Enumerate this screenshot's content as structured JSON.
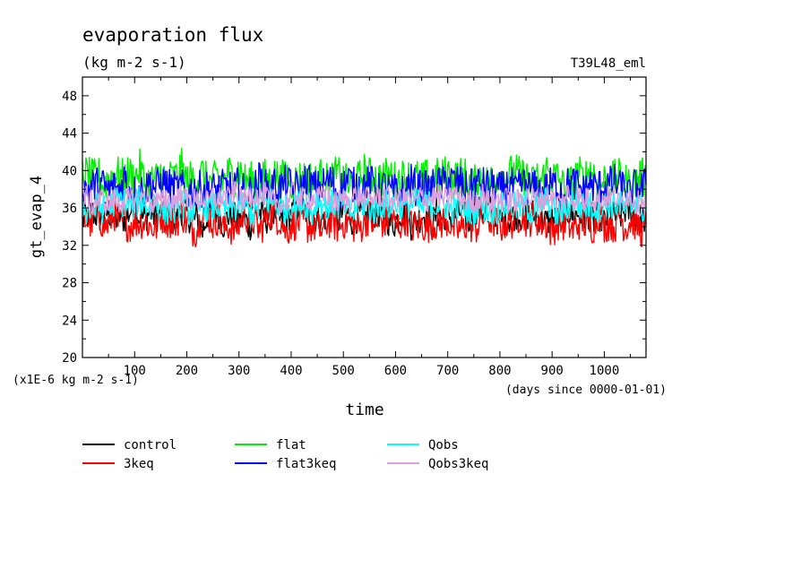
{
  "chart_data": {
    "type": "line",
    "title": "evaporation flux",
    "subtitle": "(kg m-2 s-1)",
    "experiment": "T39L48_eml",
    "xlabel": "time",
    "ylabel": "gt_evap_4",
    "x_units": "(days since 0000-01-01)",
    "y_scale_note": "(x1E-6 kg m-2 s-1)",
    "xlim": [
      0,
      1080
    ],
    "ylim": [
      20,
      50
    ],
    "xticks": [
      100,
      200,
      300,
      400,
      500,
      600,
      700,
      800,
      900,
      1000
    ],
    "xtick_labels": [
      "100",
      "200",
      "300",
      "400",
      "500",
      "600",
      "700",
      "800",
      "900",
      "1000"
    ],
    "yticks": [
      20,
      24,
      28,
      32,
      36,
      40,
      44,
      48
    ],
    "ytick_labels": [
      "20",
      "24",
      "28",
      "32",
      "36",
      "40",
      "44",
      "48"
    ],
    "grid": false,
    "legend_position": "bottom",
    "series": [
      {
        "name": "control",
        "color": "#000000",
        "values": [
          34.6,
          35.3,
          35.5,
          35.0,
          34.9,
          35.7,
          34.4,
          35.3,
          34.8,
          35.5,
          36.4,
          34.9,
          35.0,
          35.6,
          35.1,
          35.3,
          35.3,
          34.7,
          34.5,
          35.8,
          35.4,
          34.6,
          35.0,
          33.5,
          35.3,
          35.8,
          35.7,
          34.2,
          35.2,
          35.0,
          34.5,
          35.0,
          34.0,
          35.0,
          35.5,
          34.7,
          35.2,
          35.6,
          34.6,
          35.1,
          35.3,
          36.1,
          36.0,
          35.5,
          34.8,
          35.1,
          34.8,
          35.3,
          35.3,
          34.5,
          35.7,
          35.3,
          34.4,
          35.5,
          34.6,
          35.8,
          35.2,
          35.6,
          35.2,
          34.4,
          34.4,
          35.5,
          35.3,
          34.2,
          34.6,
          35.2,
          35.3,
          34.1,
          35.6,
          34.9,
          35.6,
          34.6,
          35.5,
          35.7,
          34.2,
          36.1,
          35.8,
          35.6,
          35.9,
          34.9,
          34.7,
          34.7,
          34.8,
          35.4,
          35.1,
          35.1,
          35.5,
          35.1,
          35.0,
          34.4,
          34.9,
          34.5,
          35.5,
          35.7,
          35.1,
          35.4,
          35.0,
          35.4,
          34.6,
          35.3,
          34.4,
          35.4,
          35.0,
          35.1,
          35.8,
          35.6,
          35.0,
          34.9,
          34.8
        ]
      },
      {
        "name": "3keq",
        "color": "#ff0000",
        "values": [
          35.2,
          34.5,
          34.4,
          35.7,
          34.1,
          34.2,
          35.6,
          34.1,
          34.6,
          34.1,
          34.6,
          34.5,
          34.6,
          34.0,
          33.8,
          35.2,
          34.9,
          34.4,
          34.6,
          35.5,
          34.4,
          33.7,
          33.7,
          35.8,
          35.4,
          34.3,
          35.0,
          33.8,
          34.1,
          33.6,
          34.3,
          35.5,
          34.8,
          34.6,
          33.5,
          34.8,
          35.4,
          35.1,
          34.7,
          33.4,
          34.3,
          34.4,
          34.7,
          34.0,
          34.1,
          33.9,
          33.4,
          34.6,
          34.5,
          33.9,
          34.5,
          34.6,
          34.1,
          33.6,
          34.6,
          35.1,
          33.8,
          34.9,
          34.2,
          35.6,
          34.0,
          34.3,
          35.1,
          34.1,
          33.9,
          34.3,
          33.9,
          34.5,
          34.3,
          34.5,
          34.7,
          33.9,
          33.6,
          33.8,
          34.7,
          33.5,
          34.4,
          35.2,
          34.7,
          34.6,
          33.9,
          34.4,
          34.6,
          34.4,
          35.5,
          34.8,
          34.8,
          34.9,
          34.4,
          34.3,
          33.4,
          34.5,
          34.2,
          34.4,
          33.5,
          34.4,
          34.5,
          33.8,
          34.1,
          35.6,
          34.1,
          34.4,
          34.0,
          35.2,
          33.9,
          34.6,
          34.4,
          33.5,
          34.2
        ]
      },
      {
        "name": "flat",
        "color": "#00ee00",
        "values": [
          39.6,
          39.5,
          39.1,
          39.6,
          38.4,
          39.2,
          39.6,
          39.5,
          39.1,
          39.7,
          39.0,
          40.2,
          38.6,
          38.9,
          38.9,
          39.8,
          39.1,
          39.2,
          39.3,
          40.3,
          38.8,
          39.2,
          39.1,
          39.7,
          38.6,
          38.8,
          39.4,
          38.8,
          39.8,
          39.0,
          40.3,
          38.9,
          39.0,
          38.7,
          38.4,
          39.3,
          38.7,
          39.6,
          38.8,
          39.8,
          38.7,
          38.9,
          39.2,
          39.1,
          39.0,
          38.6,
          39.7,
          38.6,
          39.2,
          39.6,
          38.9,
          38.4,
          38.7,
          39.0,
          39.9,
          39.4,
          39.3,
          39.2,
          39.3,
          39.5,
          38.9,
          39.2,
          39.4,
          39.1,
          39.2,
          38.9,
          39.2,
          39.1,
          39.3,
          39.3,
          39.9,
          39.0,
          39.3,
          39.6,
          38.9,
          38.4,
          39.5,
          38.6,
          38.7,
          39.3,
          39.8,
          39.3,
          39.6,
          39.9,
          39.3,
          39.4,
          38.3,
          39.3,
          38.8,
          40.1,
          39.2,
          39.3,
          38.3,
          38.6,
          38.6,
          39.8,
          38.8,
          40.0,
          39.8,
          38.2,
          39.0,
          38.6,
          39.2,
          39.2,
          38.8,
          38.2,
          38.9,
          39.5,
          38.9
        ]
      },
      {
        "name": "flat3keq",
        "color": "#0000ff",
        "values": [
          38.5,
          37.9,
          38.5,
          38.4,
          38.4,
          37.8,
          38.3,
          37.9,
          39.3,
          38.1,
          37.7,
          38.0,
          37.9,
          38.8,
          38.2,
          38.7,
          38.6,
          38.1,
          38.0,
          38.2,
          37.6,
          38.0,
          38.1,
          38.0,
          38.1,
          37.9,
          37.9,
          38.2,
          38.2,
          37.8,
          38.6,
          37.6,
          37.6,
          38.0,
          39.2,
          38.2,
          38.0,
          38.6,
          38.1,
          38.7,
          38.3,
          38.1,
          38.0,
          39.3,
          38.4,
          38.0,
          38.4,
          38.9,
          38.7,
          37.3,
          38.5,
          39.1,
          38.4,
          38.5,
          38.4,
          38.5,
          38.7,
          37.6,
          38.5,
          37.7,
          37.7,
          37.5,
          38.0,
          38.8,
          38.1,
          38.2,
          38.0,
          38.2,
          38.6,
          38.4,
          39.1,
          38.8,
          38.8,
          38.2,
          37.8,
          38.6,
          38.6,
          38.4,
          38.3,
          38.2,
          37.9,
          38.1,
          38.7,
          37.6,
          38.5,
          38.6,
          38.0,
          38.1,
          37.8,
          38.0,
          38.6,
          38.3,
          38.0,
          38.4,
          38.6,
          38.4,
          37.7,
          38.6,
          38.2,
          38.3,
          38.3,
          38.5,
          38.8,
          38.1,
          38.3,
          37.1,
          38.4,
          38.0,
          38.5
        ]
      },
      {
        "name": "Qobs",
        "color": "#00ffff",
        "values": [
          36.4,
          35.5,
          35.8,
          36.1,
          35.9,
          36.0,
          36.6,
          36.9,
          36.5,
          36.4,
          36.1,
          36.9,
          36.5,
          35.9,
          36.8,
          35.9,
          35.7,
          35.8,
          35.6,
          36.8,
          35.8,
          35.7,
          35.9,
          36.4,
          36.0,
          36.1,
          36.3,
          35.8,
          35.8,
          35.9,
          36.3,
          36.5,
          35.6,
          35.5,
          36.0,
          36.4,
          36.8,
          36.4,
          36.0,
          35.8,
          36.4,
          36.1,
          36.6,
          36.4,
          35.3,
          37.1,
          36.3,
          36.2,
          36.4,
          36.2,
          36.4,
          35.6,
          35.4,
          37.1,
          36.3,
          36.0,
          35.6,
          36.5,
          36.4,
          36.1,
          36.6,
          36.3,
          36.3,
          36.4,
          36.6,
          36.0,
          36.4,
          36.3,
          36.3,
          36.5,
          36.0,
          35.7,
          36.2,
          36.0,
          35.9,
          35.5,
          36.7,
          36.1,
          35.7,
          35.7,
          36.0,
          36.1,
          36.5,
          36.0,
          36.1,
          36.3,
          35.6,
          35.9,
          36.5,
          37.0,
          35.9,
          35.3,
          35.7,
          36.1,
          36.8,
          36.3,
          36.0,
          36.2,
          36.1,
          36.0,
          36.3,
          36.3,
          36.4,
          36.3,
          35.8,
          36.2,
          36.9,
          36.0,
          35.6
        ]
      },
      {
        "name": "Qobs3keq",
        "color": "#dda0dd",
        "values": [
          37.5,
          37.0,
          36.4,
          36.8,
          36.9,
          36.5,
          36.9,
          36.4,
          37.1,
          36.8,
          36.8,
          36.7,
          37.7,
          36.5,
          36.7,
          36.5,
          37.2,
          36.5,
          37.1,
          37.6,
          36.7,
          37.0,
          36.7,
          37.1,
          36.5,
          37.3,
          36.9,
          37.3,
          37.0,
          37.7,
          36.9,
          36.8,
          37.4,
          37.5,
          37.1,
          37.5,
          36.7,
          36.7,
          36.4,
          36.5,
          37.5,
          37.6,
          36.9,
          37.2,
          36.9,
          37.0,
          37.2,
          37.3,
          36.4,
          36.8,
          37.0,
          36.7,
          37.3,
          37.2,
          36.9,
          37.0,
          37.1,
          37.3,
          37.1,
          37.0,
          36.7,
          37.3,
          37.2,
          36.9,
          36.6,
          37.4,
          36.9,
          37.1,
          37.3,
          37.2,
          36.7,
          37.7,
          37.3,
          37.0,
          36.7,
          36.7,
          37.0,
          37.6,
          36.5,
          36.9,
          37.0,
          37.0,
          36.7,
          36.6,
          37.0,
          37.3,
          36.9,
          37.1,
          36.8,
          37.4,
          37.1,
          36.6,
          36.7,
          37.7,
          36.8,
          37.2,
          36.5,
          37.4,
          36.9,
          36.8,
          37.2,
          37.0,
          37.4,
          36.3,
          37.4,
          37.3,
          36.8,
          36.3,
          37.1
        ]
      }
    ]
  }
}
